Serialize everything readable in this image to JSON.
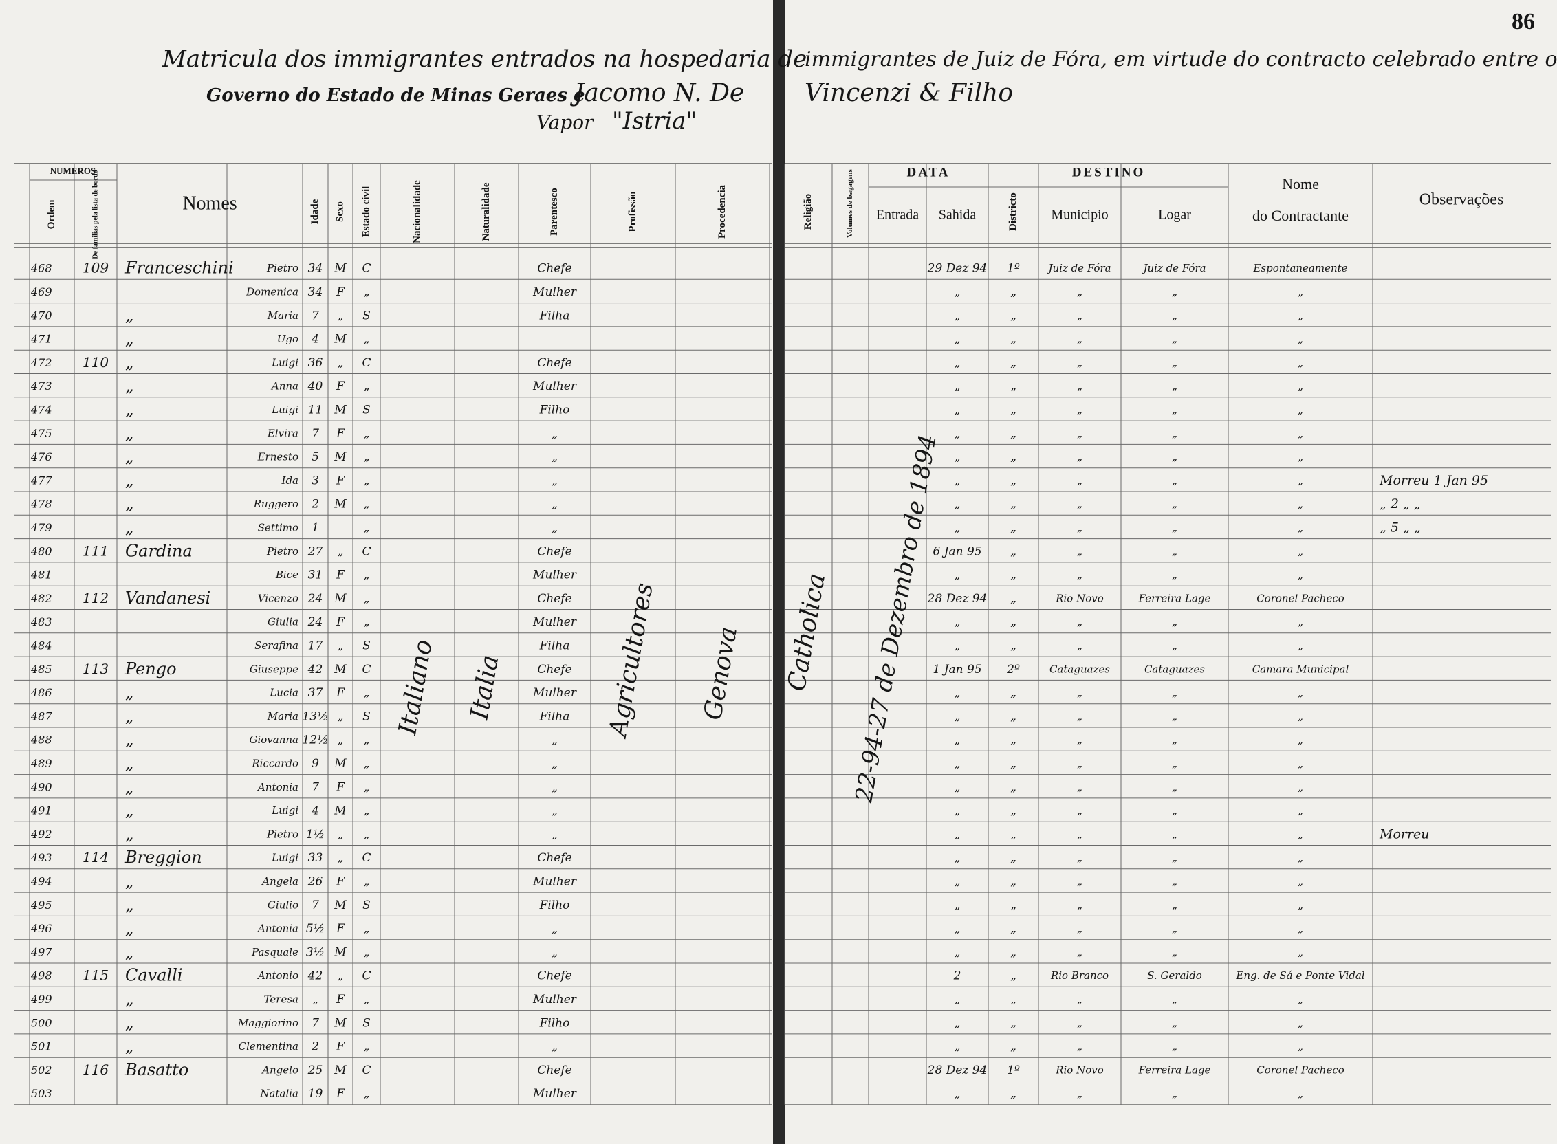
{
  "page_number": "86",
  "header": {
    "line1_left": "Matricula dos immigrantes entrados na hospedaria de",
    "line1_right": "immigrantes de Juiz de Fóra, em virtude do contracto celebrado entre o",
    "line2_left": "Governo do Estado de Minas Geraes e",
    "line2_hand": "Jacomo N. De",
    "line2_right": "Vincenzi & Filho",
    "line3_label": "Vapor",
    "line3_hand": "\"Istria\""
  },
  "column_headers": {
    "numeros": "NUMEROS",
    "ordem": "Ordem",
    "familia": "De familias pela lista de bordo",
    "nomes": "Nomes",
    "idade": "Idade",
    "sexo": "Sexo",
    "estado": "Estado civil",
    "nacionalidade": "Nacionalidade",
    "naturalidade": "Naturalidade",
    "parentesco": "Parentesco",
    "profissao": "Profissão",
    "procedencia": "Procedencia",
    "religiao": "Religião",
    "volumes": "Volumes de bagagens",
    "data": "DATA",
    "entrada": "Entrada",
    "sahida": "Sahida",
    "districto": "Districto",
    "destino": "DESTINO",
    "municipio": "Municipio",
    "logar": "Logar",
    "contractante_1": "Nome",
    "contractante_2": "do Contractante",
    "observacoes": "Observações"
  },
  "spanning": {
    "nacionalidade": "Italiano",
    "naturalidade": "Italia",
    "profissao": "Agricultores",
    "procedencia": "Genova",
    "religiao": "Catholica",
    "entrada": "22-94-27 de Dezembro de 1894"
  },
  "rows": [
    {
      "ordem": "468",
      "familia": "109",
      "sobrenome": "Franceschini",
      "nome": "Pietro",
      "idade": "34",
      "sexo": "M",
      "estado": "C",
      "parentesco": "Chefe",
      "sahida": "29 Dez 94",
      "districto": "1º",
      "municipio": "Juiz de Fóra",
      "logar": "Juiz de Fóra",
      "contractante": "Espontaneamente"
    },
    {
      "ordem": "469",
      "nome": "Domenica",
      "idade": "34",
      "sexo": "F",
      "estado": "„",
      "parentesco": "Mulher",
      "sahida": "„",
      "districto": "„",
      "municipio": "„",
      "logar": "„",
      "contractante": "„"
    },
    {
      "ordem": "470",
      "sobrenome": "„",
      "nome": "Maria",
      "idade": "7",
      "sexo": "„",
      "estado": "S",
      "parentesco": "Filha",
      "sahida": "„",
      "districto": "„",
      "municipio": "„",
      "logar": "„",
      "contractante": "„"
    },
    {
      "ordem": "471",
      "sobrenome": "„",
      "nome": "Ugo",
      "idade": "4",
      "sexo": "M",
      "estado": "„",
      "sahida": "„",
      "districto": "„",
      "municipio": "„",
      "logar": "„",
      "contractante": "„"
    },
    {
      "ordem": "472",
      "familia": "110",
      "sobrenome": "„",
      "nome": "Luigi",
      "idade": "36",
      "sexo": "„",
      "estado": "C",
      "parentesco": "Chefe",
      "sahida": "„",
      "districto": "„",
      "municipio": "„",
      "logar": "„",
      "contractante": "„"
    },
    {
      "ordem": "473",
      "sobrenome": "„",
      "nome": "Anna",
      "idade": "40",
      "sexo": "F",
      "estado": "„",
      "parentesco": "Mulher",
      "sahida": "„",
      "districto": "„",
      "municipio": "„",
      "logar": "„",
      "contractante": "„"
    },
    {
      "ordem": "474",
      "sobrenome": "„",
      "nome": "Luigi",
      "idade": "11",
      "sexo": "M",
      "estado": "S",
      "parentesco": "Filho",
      "sahida": "„",
      "districto": "„",
      "municipio": "„",
      "logar": "„",
      "contractante": "„"
    },
    {
      "ordem": "475",
      "sobrenome": "„",
      "nome": "Elvira",
      "idade": "7",
      "sexo": "F",
      "estado": "„",
      "parentesco": "„",
      "sahida": "„",
      "districto": "„",
      "municipio": "„",
      "logar": "„",
      "contractante": "„"
    },
    {
      "ordem": "476",
      "sobrenome": "„",
      "nome": "Ernesto",
      "idade": "5",
      "sexo": "M",
      "estado": "„",
      "parentesco": "„",
      "sahida": "„",
      "districto": "„",
      "municipio": "„",
      "logar": "„",
      "contractante": "„"
    },
    {
      "ordem": "477",
      "sobrenome": "„",
      "nome": "Ida",
      "idade": "3",
      "sexo": "F",
      "estado": "„",
      "parentesco": "„",
      "sahida": "„",
      "districto": "„",
      "municipio": "„",
      "logar": "„",
      "contractante": "„",
      "observacoes": "Morreu 1 Jan 95"
    },
    {
      "ordem": "478",
      "sobrenome": "„",
      "nome": "Ruggero",
      "idade": "2",
      "sexo": "M",
      "estado": "„",
      "parentesco": "„",
      "sahida": "„",
      "districto": "„",
      "municipio": "„",
      "logar": "„",
      "contractante": "„",
      "observacoes": "„ 2 „ „"
    },
    {
      "ordem": "479",
      "sobrenome": "„",
      "nome": "Settimo",
      "idade": "1",
      "estado": "„",
      "parentesco": "„",
      "sahida": "„",
      "districto": "„",
      "municipio": "„",
      "logar": "„",
      "contractante": "„",
      "observacoes": "„ 5 „ „"
    },
    {
      "ordem": "480",
      "familia": "111",
      "sobrenome": "Gardina",
      "nome": "Pietro",
      "idade": "27",
      "sexo": "„",
      "estado": "C",
      "parentesco": "Chefe",
      "sahida": "6 Jan 95",
      "districto": "„",
      "municipio": "„",
      "logar": "„",
      "contractante": "„"
    },
    {
      "ordem": "481",
      "nome": "Bice",
      "idade": "31",
      "sexo": "F",
      "estado": "„",
      "parentesco": "Mulher",
      "sahida": "„",
      "districto": "„",
      "municipio": "„",
      "logar": "„",
      "contractante": "„"
    },
    {
      "ordem": "482",
      "familia": "112",
      "sobrenome": "Vandanesi",
      "nome": "Vicenzo",
      "idade": "24",
      "sexo": "M",
      "estado": "„",
      "parentesco": "Chefe",
      "sahida": "28 Dez 94",
      "districto": "„",
      "municipio": "Rio Novo",
      "logar": "Ferreira Lage",
      "contractante": "Coronel Pacheco"
    },
    {
      "ordem": "483",
      "nome": "Giulia",
      "idade": "24",
      "sexo": "F",
      "estado": "„",
      "parentesco": "Mulher",
      "sahida": "„",
      "districto": "„",
      "municipio": "„",
      "logar": "„",
      "contractante": "„"
    },
    {
      "ordem": "484",
      "nome": "Serafina",
      "idade": "17",
      "sexo": "„",
      "estado": "S",
      "parentesco": "Filha",
      "sahida": "„",
      "districto": "„",
      "municipio": "„",
      "logar": "„",
      "contractante": "„"
    },
    {
      "ordem": "485",
      "familia": "113",
      "sobrenome": "Pengo",
      "nome": "Giuseppe",
      "idade": "42",
      "sexo": "M",
      "estado": "C",
      "parentesco": "Chefe",
      "sahida": "1 Jan 95",
      "districto": "2º",
      "municipio": "Cataguazes",
      "logar": "Cataguazes",
      "contractante": "Camara Municipal"
    },
    {
      "ordem": "486",
      "sobrenome": "„",
      "nome": "Lucia",
      "idade": "37",
      "sexo": "F",
      "estado": "„",
      "parentesco": "Mulher",
      "sahida": "„",
      "districto": "„",
      "municipio": "„",
      "logar": "„",
      "contractante": "„"
    },
    {
      "ordem": "487",
      "sobrenome": "„",
      "nome": "Maria",
      "idade": "13½",
      "sexo": "„",
      "estado": "S",
      "parentesco": "Filha",
      "sahida": "„",
      "districto": "„",
      "municipio": "„",
      "logar": "„",
      "contractante": "„"
    },
    {
      "ordem": "488",
      "sobrenome": "„",
      "nome": "Giovanna",
      "idade": "12½",
      "sexo": "„",
      "estado": "„",
      "parentesco": "„",
      "sahida": "„",
      "districto": "„",
      "municipio": "„",
      "logar": "„",
      "contractante": "„"
    },
    {
      "ordem": "489",
      "sobrenome": "„",
      "nome": "Riccardo",
      "idade": "9",
      "sexo": "M",
      "estado": "„",
      "parentesco": "„",
      "sahida": "„",
      "districto": "„",
      "municipio": "„",
      "logar": "„",
      "contractante": "„"
    },
    {
      "ordem": "490",
      "sobrenome": "„",
      "nome": "Antonia",
      "idade": "7",
      "sexo": "F",
      "estado": "„",
      "parentesco": "„",
      "sahida": "„",
      "districto": "„",
      "municipio": "„",
      "logar": "„",
      "contractante": "„"
    },
    {
      "ordem": "491",
      "sobrenome": "„",
      "nome": "Luigi",
      "idade": "4",
      "sexo": "M",
      "estado": "„",
      "parentesco": "„",
      "sahida": "„",
      "districto": "„",
      "municipio": "„",
      "logar": "„",
      "contractante": "„"
    },
    {
      "ordem": "492",
      "sobrenome": "„",
      "nome": "Pietro",
      "idade": "1½",
      "sexo": "„",
      "estado": "„",
      "parentesco": "„",
      "sahida": "„",
      "districto": "„",
      "municipio": "„",
      "logar": "„",
      "contractante": "„",
      "observacoes": "Morreu"
    },
    {
      "ordem": "493",
      "familia": "114",
      "sobrenome": "Breggion",
      "nome": "Luigi",
      "idade": "33",
      "sexo": "„",
      "estado": "C",
      "parentesco": "Chefe",
      "sahida": "„",
      "districto": "„",
      "municipio": "„",
      "logar": "„",
      "contractante": "„"
    },
    {
      "ordem": "494",
      "sobrenome": "„",
      "nome": "Angela",
      "idade": "26",
      "sexo": "F",
      "estado": "„",
      "parentesco": "Mulher",
      "sahida": "„",
      "districto": "„",
      "municipio": "„",
      "logar": "„",
      "contractante": "„"
    },
    {
      "ordem": "495",
      "sobrenome": "„",
      "nome": "Giulio",
      "idade": "7",
      "sexo": "M",
      "estado": "S",
      "parentesco": "Filho",
      "sahida": "„",
      "districto": "„",
      "municipio": "„",
      "logar": "„",
      "contractante": "„"
    },
    {
      "ordem": "496",
      "sobrenome": "„",
      "nome": "Antonia",
      "idade": "5½",
      "sexo": "F",
      "estado": "„",
      "parentesco": "„",
      "sahida": "„",
      "districto": "„",
      "municipio": "„",
      "logar": "„",
      "contractante": "„"
    },
    {
      "ordem": "497",
      "sobrenome": "„",
      "nome": "Pasquale",
      "idade": "3½",
      "sexo": "M",
      "estado": "„",
      "parentesco": "„",
      "sahida": "„",
      "districto": "„",
      "municipio": "„",
      "logar": "„",
      "contractante": "„"
    },
    {
      "ordem": "498",
      "familia": "115",
      "sobrenome": "Cavalli",
      "nome": "Antonio",
      "idade": "42",
      "sexo": "„",
      "estado": "C",
      "parentesco": "Chefe",
      "sahida": "2",
      "districto": "„",
      "municipio": "Rio Branco",
      "logar": "S. Geraldo",
      "contractante": "Eng. de Sá e Ponte Vidal"
    },
    {
      "ordem": "499",
      "sobrenome": "„",
      "nome": "Teresa",
      "idade": "„",
      "sexo": "F",
      "estado": "„",
      "parentesco": "Mulher",
      "sahida": "„",
      "districto": "„",
      "municipio": "„",
      "logar": "„",
      "contractante": "„"
    },
    {
      "ordem": "500",
      "sobrenome": "„",
      "nome": "Maggiorino",
      "idade": "7",
      "sexo": "M",
      "estado": "S",
      "parentesco": "Filho",
      "sahida": "„",
      "districto": "„",
      "municipio": "„",
      "logar": "„",
      "contractante": "„"
    },
    {
      "ordem": "501",
      "sobrenome": "„",
      "nome": "Clementina",
      "idade": "2",
      "sexo": "F",
      "estado": "„",
      "parentesco": "„",
      "sahida": "„",
      "districto": "„",
      "municipio": "„",
      "logar": "„",
      "contractante": "„"
    },
    {
      "ordem": "502",
      "familia": "116",
      "sobrenome": "Basatto",
      "nome": "Angelo",
      "idade": "25",
      "sexo": "M",
      "estado": "C",
      "parentesco": "Chefe",
      "sahida": "28 Dez 94",
      "districto": "1º",
      "municipio": "Rio Novo",
      "logar": "Ferreira Lage",
      "contractante": "Coronel Pacheco"
    },
    {
      "ordem": "503",
      "nome": "Natalia",
      "idade": "19",
      "sexo": "F",
      "estado": "„",
      "parentesco": "Mulher",
      "sahida": "„",
      "districto": "„",
      "municipio": "„",
      "logar": "„",
      "contractante": "„"
    }
  ]
}
